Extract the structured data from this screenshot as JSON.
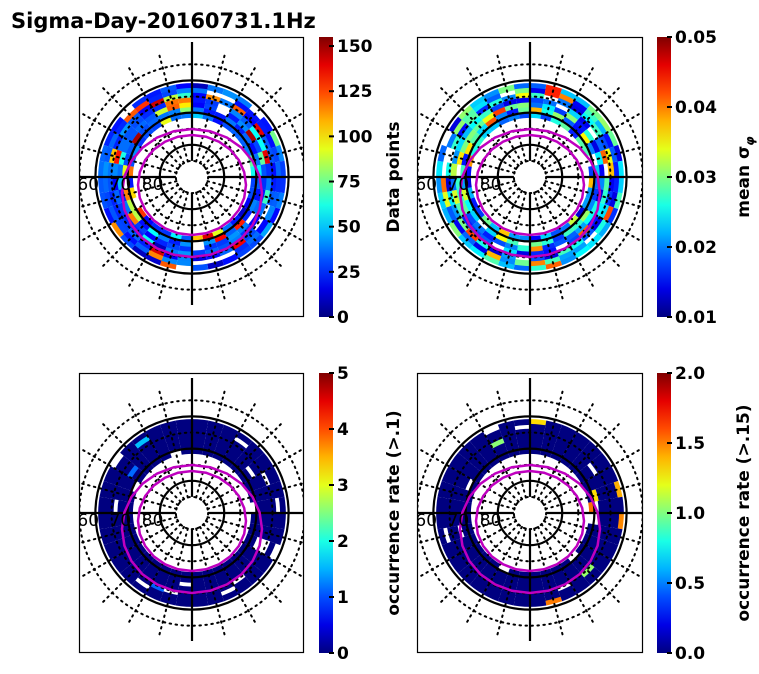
{
  "chart_data": {
    "title": "Sigma-Day-20160731.1Hz",
    "type": "heatmap",
    "projection": "polar (magnetic latitude / MLT dial)",
    "latitude_labels": [
      "60",
      "70",
      "80"
    ],
    "latitude_circles_solid": [
      60,
      70,
      80
    ],
    "latitude_circle_dotted_min": 55,
    "bins": {
      "lat_edges": [
        61,
        62.5,
        64,
        65.5,
        67,
        68.5,
        70,
        71.5
      ],
      "mlt_sectors": 36
    },
    "panels": [
      {
        "id": "data-points",
        "colorbar_label": "Data points",
        "colorbar_range": [
          0,
          155
        ],
        "colorbar_ticks": [
          "0",
          "25",
          "50",
          "75",
          "100",
          "125",
          "150"
        ],
        "colorbar_tick_values": [
          0,
          25,
          50,
          75,
          100,
          125,
          150
        ],
        "typical_value": 30,
        "value_spread": [
          5,
          150
        ],
        "seed": 11
      },
      {
        "id": "mean-sigma-phi",
        "colorbar_label": "mean σ",
        "colorbar_label_subscript": "φ",
        "colorbar_range": [
          0.01,
          0.05
        ],
        "colorbar_ticks": [
          "0.01",
          "0.02",
          "0.03",
          "0.04",
          "0.05"
        ],
        "colorbar_tick_values": [
          0.01,
          0.02,
          0.03,
          0.04,
          0.05
        ],
        "typical_value": 0.022,
        "value_spread": [
          0.017,
          0.044
        ],
        "seed": 23
      },
      {
        "id": "occurrence-rate-01",
        "colorbar_label": "occurrence rate (>.1)",
        "colorbar_range": [
          0,
          5
        ],
        "colorbar_ticks": [
          "0",
          "1",
          "2",
          "3",
          "4",
          "5"
        ],
        "colorbar_tick_values": [
          0,
          1,
          2,
          3,
          4,
          5
        ],
        "typical_value": 0,
        "value_spread": [
          0,
          1.8
        ],
        "seed": 37
      },
      {
        "id": "occurrence-rate-015",
        "colorbar_label": "occurrence rate (>.15)",
        "colorbar_range": [
          0,
          2
        ],
        "colorbar_ticks": [
          "0.0",
          "0.5",
          "1.0",
          "1.5",
          "2.0"
        ],
        "colorbar_tick_values": [
          0,
          0.5,
          1.0,
          1.5,
          2.0
        ],
        "typical_value": 0,
        "value_spread": [
          0,
          1.55
        ],
        "seed": 41
      }
    ],
    "overlay_contours": {
      "color": "#bf00bf",
      "count": 2
    }
  }
}
